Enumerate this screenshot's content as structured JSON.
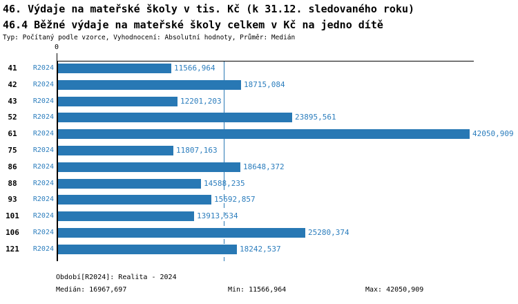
{
  "header": {
    "title": "46. Výdaje na mateřské školy v tis. Kč (k 31.12. sledovaného roku)",
    "subtitle": "46.4 Běžné výdaje na mateřské školy celkem v Kč na jedno dítě",
    "meta": "Typ: Počítaný podle vzorce, Vyhodnocení: Absolutní hodnoty, Průměr: Medián"
  },
  "chart_data": {
    "type": "bar",
    "orientation": "horizontal",
    "title": "46. Výdaje na mateřské školy v tis. Kč (k 31.12. sledovaného roku)",
    "subtitle": "46.4 Běžné výdaje na mateřské školy celkem v Kč na jedno dítě",
    "categories": [
      "41",
      "42",
      "43",
      "52",
      "61",
      "75",
      "86",
      "88",
      "93",
      "101",
      "106",
      "121"
    ],
    "series_name": "R2024",
    "values": [
      11566.964,
      18715.084,
      12201.203,
      23895.561,
      42050.909,
      11807.163,
      18648.372,
      14588.235,
      15692.857,
      13913.534,
      25280.374,
      18242.537
    ],
    "value_labels": [
      "11566,964",
      "18715,084",
      "12201,203",
      "23895,561",
      "42050,909",
      "11807,163",
      "18648,372",
      "14588,235",
      "15692,857",
      "13913,534",
      "25280,374",
      "18242,537"
    ],
    "x_zero_tick_label": "0",
    "xlim": [
      0,
      42050.909
    ],
    "median_value": 16967.697,
    "grid": false,
    "legend_position": "none",
    "colors": {
      "bar": "#2878b4",
      "blue_text": "#2b7dbd",
      "median_line": "#2878b4",
      "axis": "#000000"
    }
  },
  "footer": {
    "period_label": "Období[R2024]: Realita - 2024",
    "median_label": "Medián: 16967,697",
    "min_label": "Min: 11566,964",
    "max_label": "Max: 42050,909"
  }
}
